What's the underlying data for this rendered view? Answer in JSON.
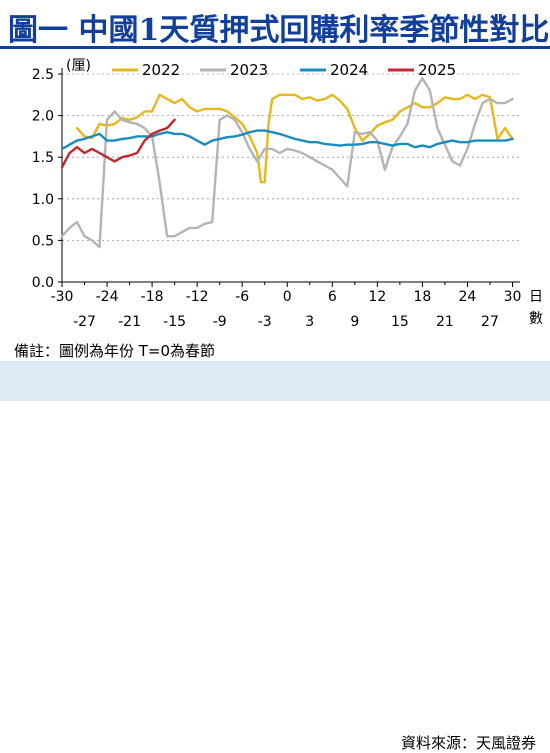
{
  "header": {
    "title": "圖一  中國1天質押式回購利率季節性對比"
  },
  "footer": {
    "note": "備註：圖例為年份 T=0為春節",
    "source": "資料來源：天風證券"
  },
  "chart_data": {
    "type": "line",
    "title": "中國1天質押式回購利率季節性對比",
    "ylabel": "(厘)",
    "xlabel": "日數",
    "xlim": [
      -30,
      31
    ],
    "ylim": [
      0,
      2.5
    ],
    "yticks": [
      0.0,
      0.5,
      1.0,
      1.5,
      2.0,
      2.5
    ],
    "ytick_labels": [
      "0.0",
      "0.5",
      "1.0",
      "1.5",
      "2.0",
      "2.5"
    ],
    "xticks_top": [
      -30,
      -24,
      -18,
      -12,
      -6,
      0,
      6,
      12,
      18,
      24,
      30
    ],
    "xticks_bottom": [
      -27,
      -21,
      -15,
      -9,
      -3,
      3,
      9,
      15,
      21,
      27
    ],
    "legend_position": "top",
    "grid": "horizontal-dashed",
    "series": [
      {
        "name": "2022",
        "color": "#e6b81e",
        "points": [
          [
            -28,
            1.85
          ],
          [
            -27,
            1.75
          ],
          [
            -26,
            1.73
          ],
          [
            -25,
            1.9
          ],
          [
            -24,
            1.88
          ],
          [
            -23,
            1.9
          ],
          [
            -22,
            1.97
          ],
          [
            -21,
            1.95
          ],
          [
            -20,
            1.98
          ],
          [
            -19,
            2.05
          ],
          [
            -18,
            2.05
          ],
          [
            -17,
            2.25
          ],
          [
            -16,
            2.2
          ],
          [
            -15,
            2.15
          ],
          [
            -14,
            2.2
          ],
          [
            -13,
            2.1
          ],
          [
            -12,
            2.05
          ],
          [
            -11,
            2.08
          ],
          [
            -10,
            2.08
          ],
          [
            -9,
            2.08
          ],
          [
            -8,
            2.05
          ],
          [
            -7,
            1.98
          ],
          [
            -6,
            1.9
          ],
          [
            -5,
            1.75
          ],
          [
            -4,
            1.55
          ],
          [
            -3.5,
            1.2
          ],
          [
            -3,
            1.2
          ],
          [
            -2.5,
            1.9
          ],
          [
            -2,
            2.2
          ],
          [
            -1,
            2.25
          ],
          [
            0,
            2.25
          ],
          [
            1,
            2.25
          ],
          [
            2,
            2.2
          ],
          [
            3,
            2.22
          ],
          [
            4,
            2.18
          ],
          [
            5,
            2.2
          ],
          [
            6,
            2.25
          ],
          [
            7,
            2.18
          ],
          [
            8,
            2.08
          ],
          [
            9,
            1.85
          ],
          [
            10,
            1.7
          ],
          [
            11,
            1.78
          ],
          [
            12,
            1.88
          ],
          [
            13,
            1.92
          ],
          [
            14,
            1.95
          ],
          [
            15,
            2.05
          ],
          [
            16,
            2.1
          ],
          [
            17,
            2.15
          ],
          [
            18,
            2.1
          ],
          [
            19,
            2.1
          ],
          [
            20,
            2.15
          ],
          [
            21,
            2.22
          ],
          [
            22,
            2.2
          ],
          [
            23,
            2.2
          ],
          [
            24,
            2.25
          ],
          [
            25,
            2.2
          ],
          [
            26,
            2.25
          ],
          [
            27,
            2.22
          ],
          [
            28,
            1.72
          ],
          [
            29,
            1.85
          ],
          [
            30,
            1.72
          ]
        ]
      },
      {
        "name": "2023",
        "color": "#b4b4b4",
        "points": [
          [
            -30,
            0.55
          ],
          [
            -29,
            0.65
          ],
          [
            -28,
            0.72
          ],
          [
            -27,
            0.55
          ],
          [
            -26,
            0.5
          ],
          [
            -25,
            0.42
          ],
          [
            -24,
            1.95
          ],
          [
            -23,
            2.05
          ],
          [
            -22,
            1.95
          ],
          [
            -21,
            1.92
          ],
          [
            -20,
            1.9
          ],
          [
            -19,
            1.85
          ],
          [
            -18,
            1.75
          ],
          [
            -17,
            1.2
          ],
          [
            -16,
            0.55
          ],
          [
            -15,
            0.55
          ],
          [
            -14,
            0.6
          ],
          [
            -13,
            0.65
          ],
          [
            -12,
            0.65
          ],
          [
            -11,
            0.7
          ],
          [
            -10,
            0.72
          ],
          [
            -9,
            1.95
          ],
          [
            -8,
            2.0
          ],
          [
            -7,
            1.95
          ],
          [
            -6,
            1.8
          ],
          [
            -5,
            1.6
          ],
          [
            -4,
            1.45
          ],
          [
            -3,
            1.6
          ],
          [
            -2,
            1.6
          ],
          [
            -1,
            1.55
          ],
          [
            0,
            1.6
          ],
          [
            1,
            1.58
          ],
          [
            2,
            1.55
          ],
          [
            3,
            1.5
          ],
          [
            4,
            1.45
          ],
          [
            5,
            1.4
          ],
          [
            6,
            1.35
          ],
          [
            7,
            1.25
          ],
          [
            8,
            1.15
          ],
          [
            9,
            1.8
          ],
          [
            10,
            1.78
          ],
          [
            11,
            1.8
          ],
          [
            12,
            1.7
          ],
          [
            13,
            1.35
          ],
          [
            14,
            1.62
          ],
          [
            15,
            1.75
          ],
          [
            16,
            1.9
          ],
          [
            17,
            2.3
          ],
          [
            18,
            2.45
          ],
          [
            19,
            2.3
          ],
          [
            20,
            1.85
          ],
          [
            21,
            1.65
          ],
          [
            22,
            1.45
          ],
          [
            23,
            1.4
          ],
          [
            24,
            1.6
          ],
          [
            25,
            1.9
          ],
          [
            26,
            2.15
          ],
          [
            27,
            2.2
          ],
          [
            28,
            2.15
          ],
          [
            29,
            2.15
          ],
          [
            30,
            2.2
          ]
        ]
      },
      {
        "name": "2024",
        "color": "#1a8cc0",
        "points": [
          [
            -30,
            1.6
          ],
          [
            -29,
            1.65
          ],
          [
            -28,
            1.7
          ],
          [
            -27,
            1.72
          ],
          [
            -26,
            1.75
          ],
          [
            -25,
            1.78
          ],
          [
            -24,
            1.7
          ],
          [
            -23,
            1.7
          ],
          [
            -22,
            1.72
          ],
          [
            -21,
            1.73
          ],
          [
            -20,
            1.75
          ],
          [
            -19,
            1.75
          ],
          [
            -18,
            1.75
          ],
          [
            -17,
            1.78
          ],
          [
            -16,
            1.8
          ],
          [
            -15,
            1.78
          ],
          [
            -14,
            1.78
          ],
          [
            -13,
            1.75
          ],
          [
            -12,
            1.7
          ],
          [
            -11,
            1.65
          ],
          [
            -10,
            1.7
          ],
          [
            -9,
            1.72
          ],
          [
            -8,
            1.74
          ],
          [
            -7,
            1.75
          ],
          [
            -6,
            1.77
          ],
          [
            -5,
            1.8
          ],
          [
            -4,
            1.82
          ],
          [
            -3,
            1.82
          ],
          [
            -2,
            1.8
          ],
          [
            -1,
            1.78
          ],
          [
            0,
            1.75
          ],
          [
            1,
            1.72
          ],
          [
            2,
            1.7
          ],
          [
            3,
            1.68
          ],
          [
            4,
            1.68
          ],
          [
            5,
            1.66
          ],
          [
            6,
            1.65
          ],
          [
            7,
            1.64
          ],
          [
            8,
            1.65
          ],
          [
            9,
            1.65
          ],
          [
            10,
            1.66
          ],
          [
            11,
            1.68
          ],
          [
            12,
            1.68
          ],
          [
            13,
            1.66
          ],
          [
            14,
            1.64
          ],
          [
            15,
            1.66
          ],
          [
            16,
            1.66
          ],
          [
            17,
            1.62
          ],
          [
            18,
            1.64
          ],
          [
            19,
            1.62
          ],
          [
            20,
            1.66
          ],
          [
            21,
            1.68
          ],
          [
            22,
            1.7
          ],
          [
            23,
            1.68
          ],
          [
            24,
            1.68
          ],
          [
            25,
            1.7
          ],
          [
            26,
            1.7
          ],
          [
            27,
            1.7
          ],
          [
            28,
            1.7
          ],
          [
            29,
            1.7
          ],
          [
            30,
            1.72
          ]
        ]
      },
      {
        "name": "2025",
        "color": "#c0282d",
        "points": [
          [
            -30,
            1.38
          ],
          [
            -29,
            1.55
          ],
          [
            -28,
            1.62
          ],
          [
            -27,
            1.55
          ],
          [
            -26,
            1.6
          ],
          [
            -25,
            1.55
          ],
          [
            -24,
            1.5
          ],
          [
            -23,
            1.45
          ],
          [
            -22,
            1.5
          ],
          [
            -21,
            1.52
          ],
          [
            -20,
            1.55
          ],
          [
            -19,
            1.7
          ],
          [
            -18,
            1.78
          ],
          [
            -17,
            1.82
          ],
          [
            -16,
            1.85
          ],
          [
            -15,
            1.95
          ]
        ]
      }
    ]
  }
}
